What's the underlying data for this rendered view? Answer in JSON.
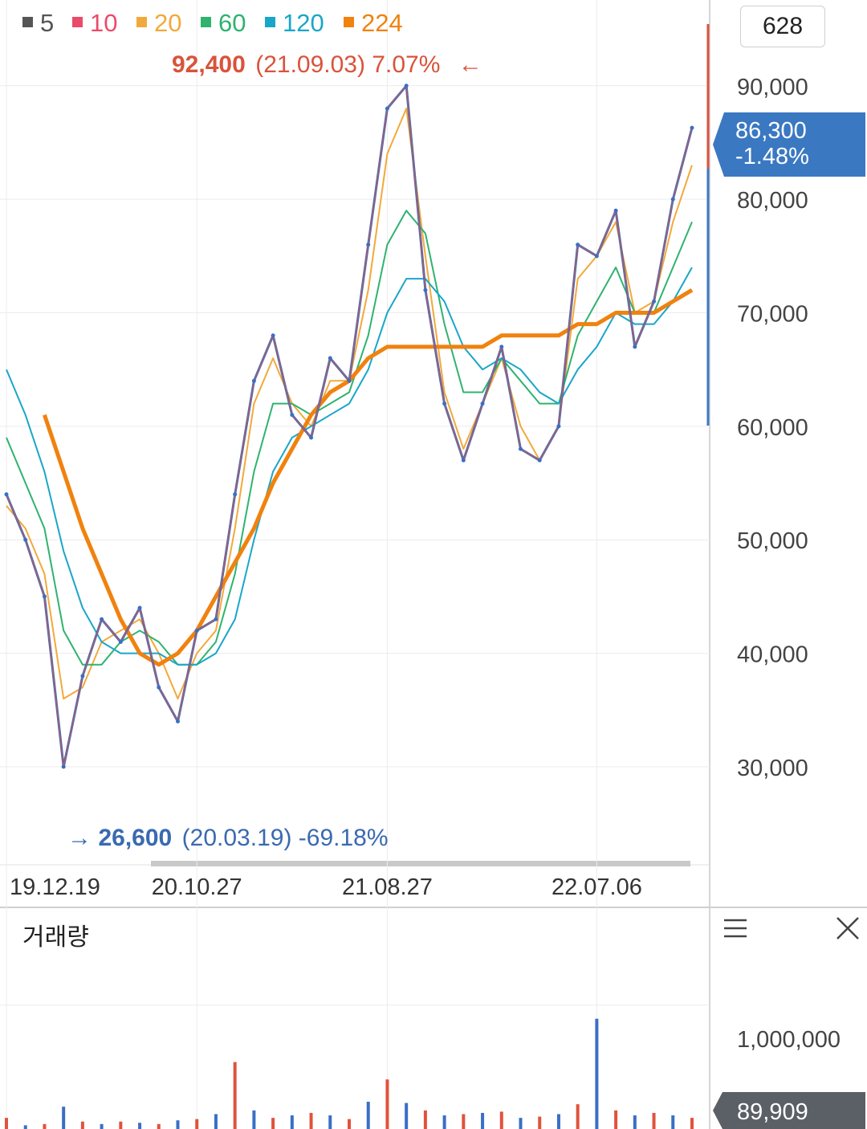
{
  "counter": "628",
  "legend": [
    {
      "label": "5",
      "color": "#555555"
    },
    {
      "label": "10",
      "color": "#ea4b6b"
    },
    {
      "label": "20",
      "color": "#f2a93b"
    },
    {
      "label": "60",
      "color": "#2fb36f"
    },
    {
      "label": "120",
      "color": "#1aa6c9"
    },
    {
      "label": "224",
      "color": "#f0820f"
    }
  ],
  "high_annotation": {
    "value": "92,400",
    "rest": "(21.09.03) 7.07%",
    "arrow": "←",
    "color": "#d9533b"
  },
  "low_annotation": {
    "arrow": "→",
    "value": "26,600",
    "rest": "(20.03.19) -69.18%",
    "color": "#3a6ab0"
  },
  "price_tag": {
    "value": "86,300",
    "change": "-1.48%",
    "color": "#3a78c2"
  },
  "volume_panel": {
    "title": "거래량",
    "tick": "1,000,000",
    "current": "89,909",
    "menu_icon": "menu-icon",
    "close_icon": "close-icon"
  },
  "chart_data": {
    "type": "line",
    "ylim": [
      22000,
      96000
    ],
    "yticks": [
      "30,000",
      "40,000",
      "50,000",
      "60,000",
      "70,000",
      "80,000",
      "90,000"
    ],
    "xticks": [
      "19.12.19",
      "20.10.27",
      "21.08.27",
      "22.07.06"
    ],
    "series": [
      {
        "name": "5",
        "color": "#555555",
        "x": [
          "19.12.19",
          "20.01.20",
          "20.02.20",
          "20.03.19",
          "20.04.20",
          "20.05.20",
          "20.06.20",
          "20.07.20",
          "20.08.20",
          "20.09.20",
          "20.10.27",
          "20.11.20",
          "20.12.20",
          "21.01.20",
          "21.02.20",
          "21.03.20",
          "21.04.20",
          "21.05.20",
          "21.06.20",
          "21.07.20",
          "21.08.27",
          "21.09.03",
          "21.10.20",
          "21.11.20",
          "21.12.20",
          "22.01.20",
          "22.02.20",
          "22.03.20",
          "22.04.20",
          "22.05.20",
          "22.06.20",
          "22.07.06",
          "22.08.20",
          "22.09.20",
          "22.10.20",
          "22.11.20",
          "22.12.20"
        ],
        "values": [
          54000,
          50000,
          45000,
          30000,
          38000,
          43000,
          41000,
          44000,
          37000,
          34000,
          42000,
          43000,
          54000,
          64000,
          68000,
          61000,
          59000,
          66000,
          64000,
          76000,
          88000,
          90000,
          72000,
          62000,
          57000,
          62000,
          67000,
          58000,
          57000,
          60000,
          76000,
          75000,
          79000,
          67000,
          71000,
          80000,
          86300
        ]
      }
    ],
    "moving_averages": [
      {
        "name": "20",
        "color": "#f2a93b",
        "values": [
          53000,
          51000,
          47000,
          36000,
          37000,
          41000,
          42000,
          43000,
          40000,
          36000,
          40000,
          42000,
          51000,
          62000,
          66000,
          62000,
          60000,
          64000,
          64000,
          72000,
          84000,
          88000,
          75000,
          63000,
          58000,
          62000,
          66000,
          60000,
          57000,
          60000,
          73000,
          75000,
          78000,
          70000,
          71000,
          78000,
          83000
        ]
      },
      {
        "name": "60",
        "color": "#2fb36f",
        "values": [
          59000,
          55000,
          51000,
          42000,
          39000,
          39000,
          41000,
          42000,
          41000,
          39000,
          39000,
          41000,
          47000,
          56000,
          62000,
          62000,
          61000,
          62000,
          63000,
          68000,
          76000,
          79000,
          77000,
          69000,
          63000,
          63000,
          66000,
          64000,
          62000,
          62000,
          68000,
          71000,
          74000,
          70000,
          70000,
          74000,
          78000
        ]
      },
      {
        "name": "120",
        "color": "#1aa6c9",
        "values": [
          65000,
          61000,
          56000,
          49000,
          44000,
          41000,
          40000,
          40000,
          40000,
          39000,
          39000,
          40000,
          43000,
          50000,
          56000,
          59000,
          60000,
          61000,
          62000,
          65000,
          70000,
          73000,
          73000,
          71000,
          67000,
          65000,
          66000,
          65000,
          63000,
          62000,
          65000,
          67000,
          70000,
          69000,
          69000,
          71000,
          74000
        ]
      },
      {
        "name": "224",
        "color": "#f0820f",
        "values": [
          null,
          null,
          61000,
          56000,
          51000,
          47000,
          43000,
          40000,
          39000,
          40000,
          42000,
          45000,
          48000,
          51000,
          55000,
          58000,
          61000,
          63000,
          64000,
          66000,
          67000,
          67000,
          67000,
          67000,
          67000,
          67000,
          68000,
          68000,
          68000,
          68000,
          69000,
          69000,
          70000,
          70000,
          70000,
          71000,
          72000
        ]
      }
    ],
    "volume": {
      "ylim": [
        0,
        1400000
      ],
      "values": [
        90000,
        30000,
        40000,
        180000,
        60000,
        40000,
        60000,
        50000,
        40000,
        70000,
        80000,
        120000,
        540000,
        150000,
        90000,
        110000,
        130000,
        110000,
        80000,
        220000,
        400000,
        210000,
        150000,
        110000,
        120000,
        130000,
        140000,
        90000,
        100000,
        120000,
        200000,
        890000,
        150000,
        110000,
        130000,
        110000,
        89909
      ]
    }
  }
}
